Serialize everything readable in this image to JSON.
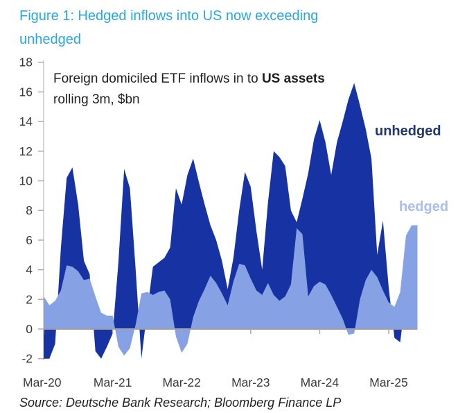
{
  "title": {
    "line1": "Figure 1: Hedged inflows into US now exceeding",
    "line2": "unhedged",
    "color": "#29A7E1"
  },
  "annotation": {
    "prefix": "Foreign domiciled ETF inflows in to ",
    "bold": "US assets",
    "line2": "rolling 3m, $bn"
  },
  "legend": {
    "unhedged": {
      "label": "unhedged",
      "color": "#20386F"
    },
    "hedged": {
      "label": "hedged",
      "color": "#A9BEEA"
    }
  },
  "source": {
    "text": "Source: Deutsche Bank Research; Bloomberg Finance LP"
  },
  "chart_data": {
    "type": "area",
    "title": "Foreign domiciled ETF inflows in to US assets, rolling 3m, $bn",
    "xlabel": "",
    "ylabel": "",
    "grid": false,
    "legend_position": "right-inside",
    "ylim": [
      -2,
      18
    ],
    "y_ticks": [
      -2,
      0,
      2,
      4,
      6,
      8,
      10,
      12,
      14,
      16,
      18
    ],
    "x_tick_labels": [
      "Mar-20",
      "Mar-21",
      "Mar-22",
      "Mar-23",
      "Mar-24",
      "Mar-25"
    ],
    "x_start": "2020-03",
    "x_end": "2025-08",
    "x_interval": "1 month",
    "zero_line_color": "#9E9E9E",
    "axis_line_color": "#C6C6C6",
    "tick_color": "#ABABAB",
    "series": [
      {
        "name": "unhedged",
        "color": "#1632A3",
        "values": [
          -2.0,
          -2.0,
          -1.0,
          5.5,
          10.2,
          10.9,
          8.4,
          4.6,
          3.7,
          -1.5,
          -2.0,
          -1.2,
          -0.3,
          4.5,
          10.8,
          9.5,
          4.0,
          -2.0,
          1.2,
          4.2,
          4.5,
          4.8,
          5.5,
          9.5,
          8.4,
          10.4,
          11.5,
          9.9,
          8.4,
          7.0,
          6.0,
          4.6,
          2.7,
          4.8,
          8.0,
          10.6,
          9.6,
          6.6,
          4.0,
          8.5,
          12.0,
          11.6,
          11.0,
          8.0,
          7.2,
          8.8,
          10.5,
          12.8,
          14.1,
          12.6,
          10.4,
          12.6,
          14.0,
          15.5,
          16.6,
          15.1,
          13.5,
          11.5,
          5.0,
          7.3,
          2.8,
          -0.6,
          -0.9,
          2.3,
          2.6,
          2.8
        ]
      },
      {
        "name": "hedged",
        "color": "#87A2E4",
        "values": [
          2.2,
          1.6,
          1.9,
          2.6,
          4.3,
          4.2,
          3.9,
          3.3,
          3.4,
          2.2,
          1.1,
          0.9,
          0.9,
          -1.2,
          -1.8,
          -1.3,
          0.3,
          2.4,
          2.5,
          2.3,
          2.5,
          2.6,
          2.0,
          -0.5,
          -1.6,
          -1.0,
          0.8,
          1.9,
          2.7,
          3.6,
          3.1,
          2.4,
          1.6,
          3.2,
          4.4,
          4.3,
          3.4,
          2.6,
          2.3,
          3.1,
          2.3,
          1.9,
          2.2,
          3.0,
          6.8,
          6.4,
          2.2,
          2.9,
          3.2,
          3.0,
          2.3,
          1.5,
          0.7,
          -0.4,
          -0.3,
          2.0,
          3.3,
          4.0,
          3.5,
          2.6,
          1.8,
          1.5,
          2.5,
          6.3,
          7.0,
          7.0
        ]
      }
    ]
  }
}
